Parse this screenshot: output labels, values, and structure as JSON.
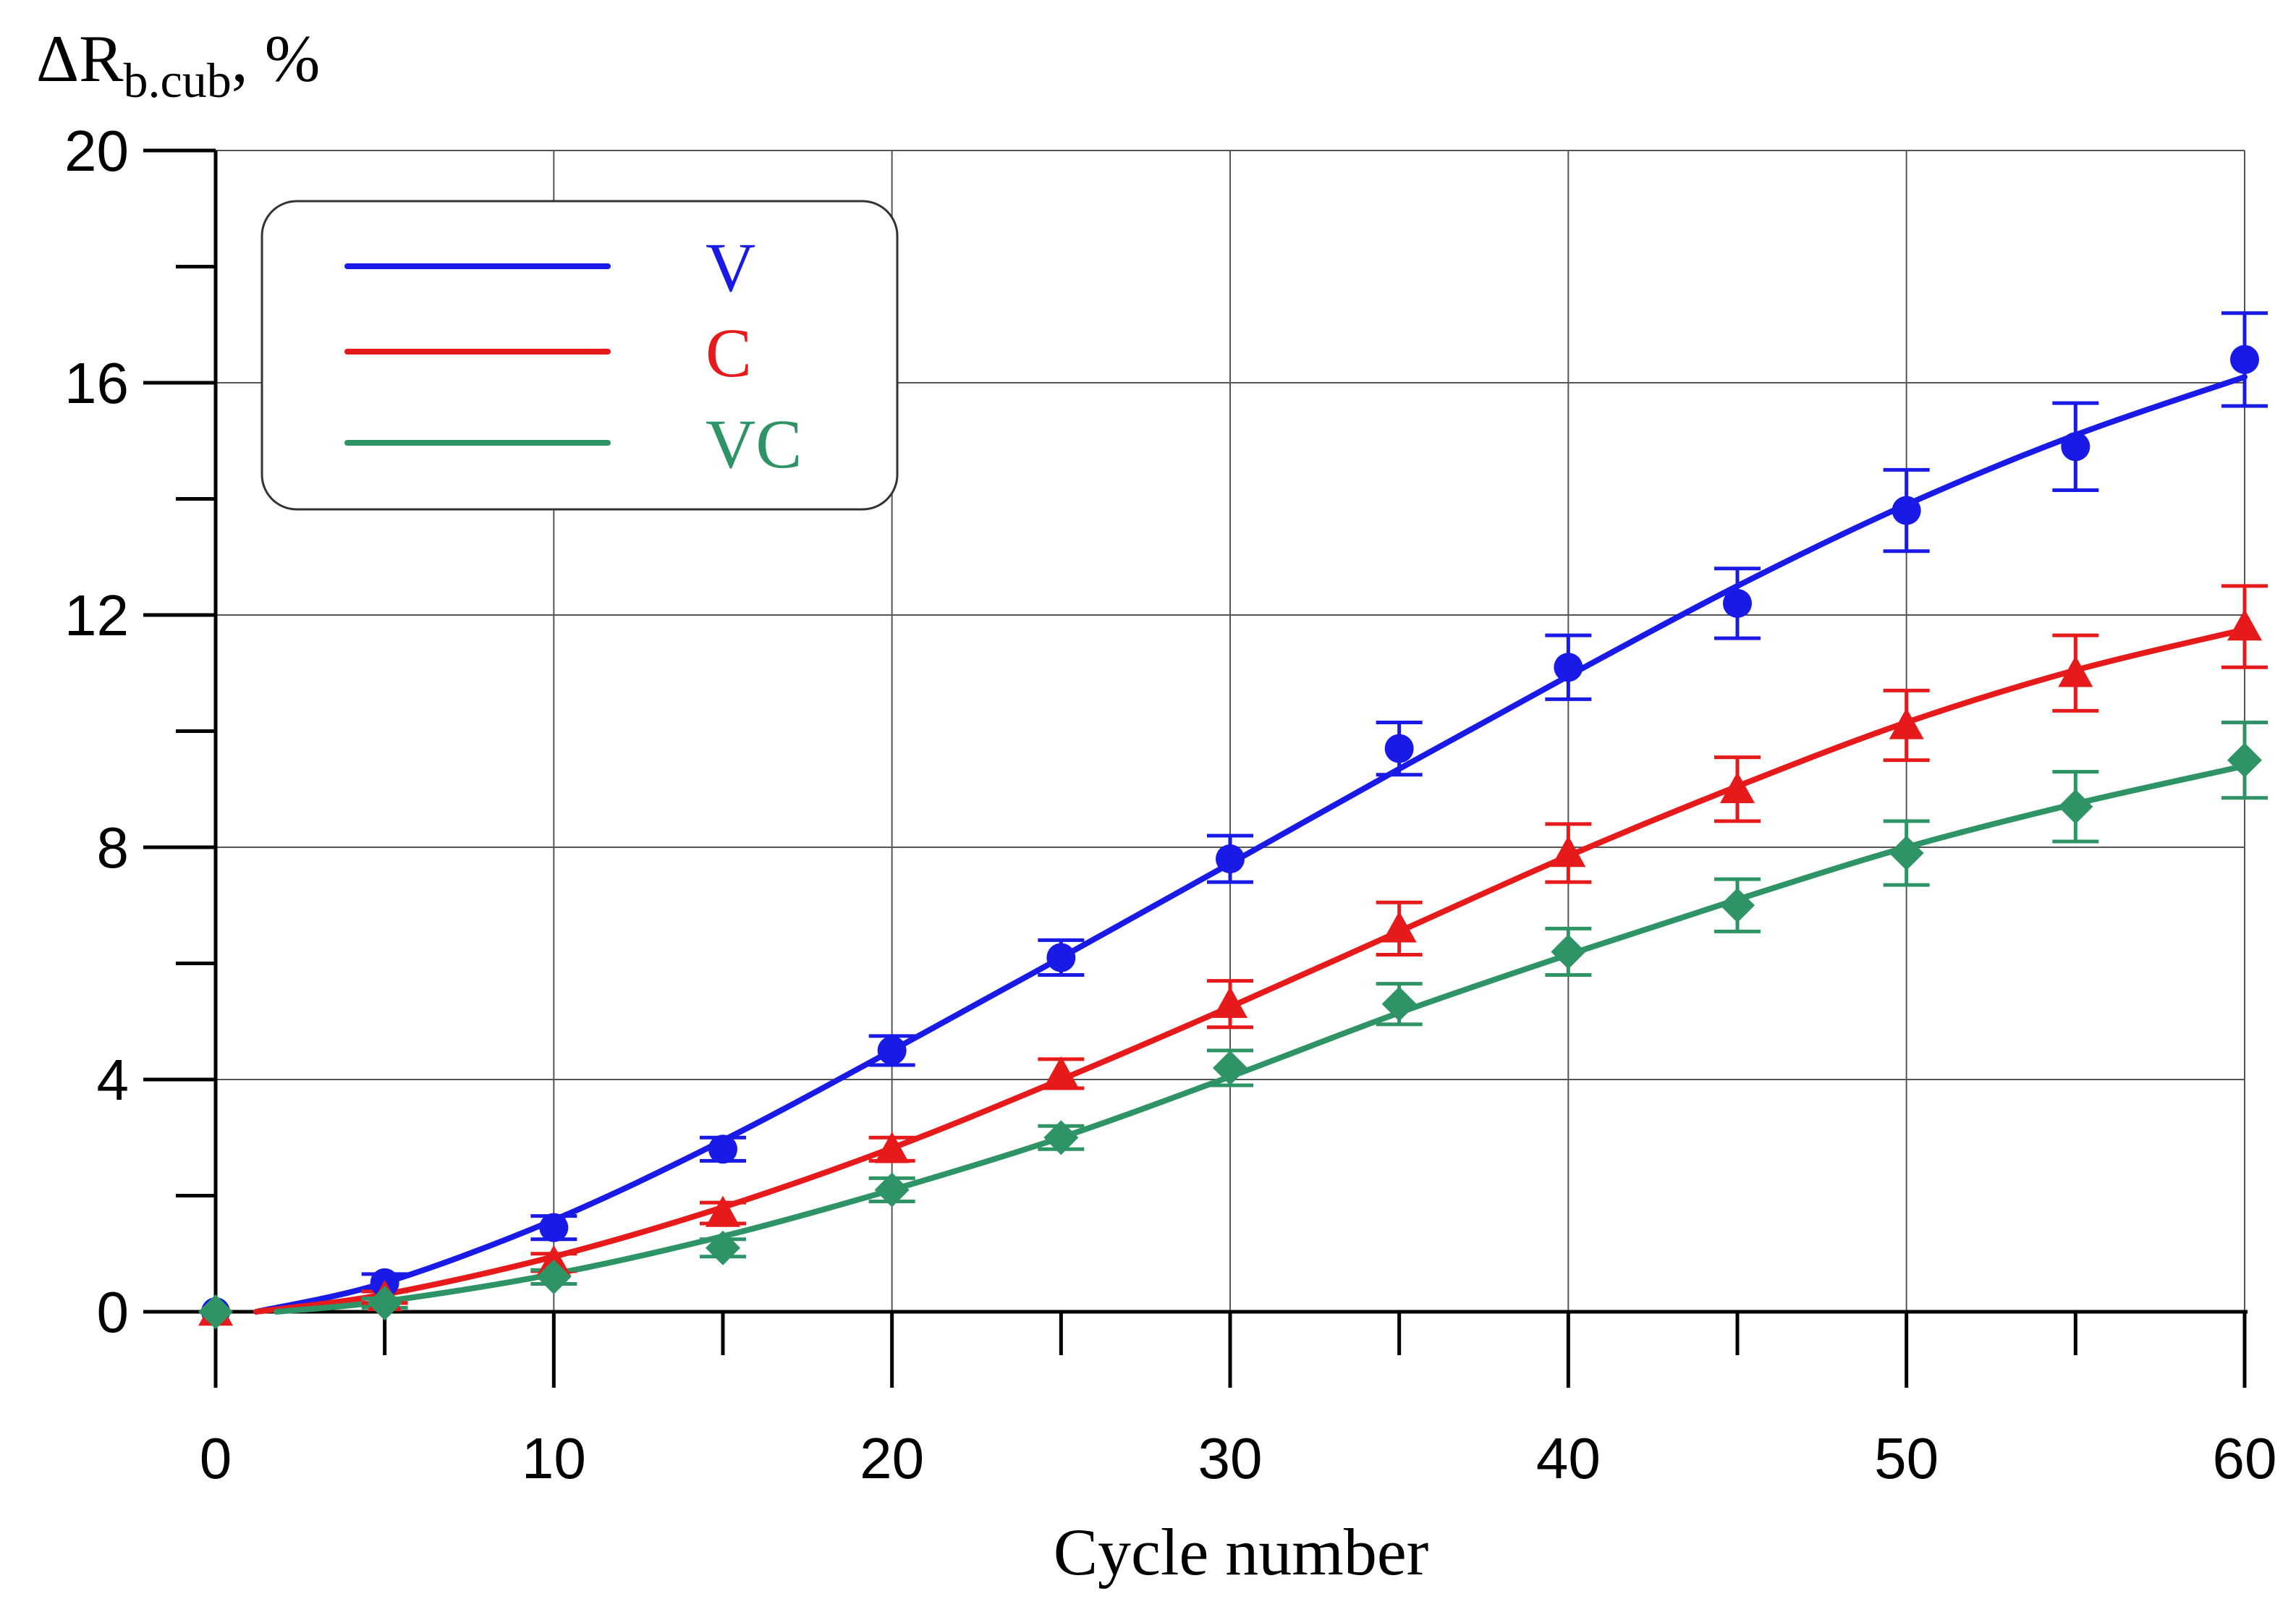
{
  "chart_data": {
    "type": "line",
    "title": "",
    "ylabel": {
      "main": "ΔR",
      "subscript": "b.cub",
      "suffix": ", %"
    },
    "xlabel": "Cycle number",
    "xlim": [
      0,
      60
    ],
    "ylim": [
      0,
      20
    ],
    "x_ticks": [
      0,
      10,
      20,
      30,
      40,
      50,
      60
    ],
    "x_tick_labels": [
      "0",
      "10",
      "20",
      "30",
      "40",
      "50",
      "60"
    ],
    "x_minor_ticks": [
      5,
      15,
      25,
      35,
      45,
      55
    ],
    "y_ticks": [
      0,
      4,
      8,
      12,
      16,
      20
    ],
    "y_tick_labels": [
      "0",
      "4",
      "8",
      "12",
      "16",
      "20"
    ],
    "y_minor_ticks": [
      2,
      6,
      10,
      14,
      18
    ],
    "grid": true,
    "legend_position": "top-left",
    "x": [
      0,
      5,
      10,
      15,
      20,
      25,
      30,
      35,
      40,
      45,
      50,
      55,
      60
    ],
    "series": [
      {
        "name": "V",
        "color": "#1a1ae6",
        "marker": "circle",
        "values": [
          0,
          0.5,
          1.45,
          2.8,
          4.5,
          6.1,
          7.8,
          9.7,
          11.1,
          12.2,
          13.8,
          14.9,
          16.4
        ],
        "errors": [
          0,
          0.15,
          0.2,
          0.2,
          0.25,
          0.3,
          0.4,
          0.45,
          0.55,
          0.6,
          0.7,
          0.75,
          0.8
        ],
        "fit": [
          [
            1.2,
            0
          ],
          [
            5,
            0.5
          ],
          [
            10,
            1.58
          ],
          [
            15,
            2.95
          ],
          [
            20,
            4.5
          ],
          [
            25,
            6.1
          ],
          [
            30,
            7.72
          ],
          [
            35,
            9.35
          ],
          [
            40,
            10.95
          ],
          [
            45,
            12.5
          ],
          [
            50,
            13.9
          ],
          [
            55,
            15.1
          ],
          [
            60,
            16.1
          ]
        ]
      },
      {
        "name": "C",
        "color": "#e61a1a",
        "marker": "triangle",
        "values": [
          0,
          0.25,
          0.85,
          1.7,
          2.8,
          4.1,
          5.3,
          6.6,
          7.9,
          9.0,
          10.1,
          11.0,
          11.8
        ],
        "errors": [
          0,
          0.1,
          0.15,
          0.18,
          0.2,
          0.25,
          0.4,
          0.45,
          0.5,
          0.55,
          0.6,
          0.65,
          0.7
        ],
        "fit": [
          [
            1.2,
            0
          ],
          [
            5,
            0.3
          ],
          [
            10,
            0.95
          ],
          [
            15,
            1.8
          ],
          [
            20,
            2.82
          ],
          [
            25,
            4.0
          ],
          [
            30,
            5.25
          ],
          [
            35,
            6.55
          ],
          [
            40,
            7.85
          ],
          [
            45,
            9.05
          ],
          [
            50,
            10.15
          ],
          [
            55,
            11.05
          ],
          [
            60,
            11.75
          ]
        ]
      },
      {
        "name": "VC",
        "color": "#2e9466",
        "marker": "diamond",
        "values": [
          0,
          0.15,
          0.6,
          1.1,
          2.1,
          3.0,
          4.2,
          5.3,
          6.2,
          7.0,
          7.9,
          8.7,
          9.5
        ],
        "errors": [
          0,
          0.08,
          0.12,
          0.15,
          0.2,
          0.2,
          0.3,
          0.35,
          0.4,
          0.45,
          0.55,
          0.6,
          0.65
        ],
        "fit": [
          [
            1.8,
            0
          ],
          [
            5,
            0.18
          ],
          [
            10,
            0.65
          ],
          [
            15,
            1.3
          ],
          [
            20,
            2.1
          ],
          [
            25,
            3.0
          ],
          [
            30,
            4.05
          ],
          [
            35,
            5.15
          ],
          [
            40,
            6.15
          ],
          [
            45,
            7.1
          ],
          [
            50,
            8.0
          ],
          [
            55,
            8.75
          ],
          [
            60,
            9.4
          ]
        ]
      }
    ]
  }
}
